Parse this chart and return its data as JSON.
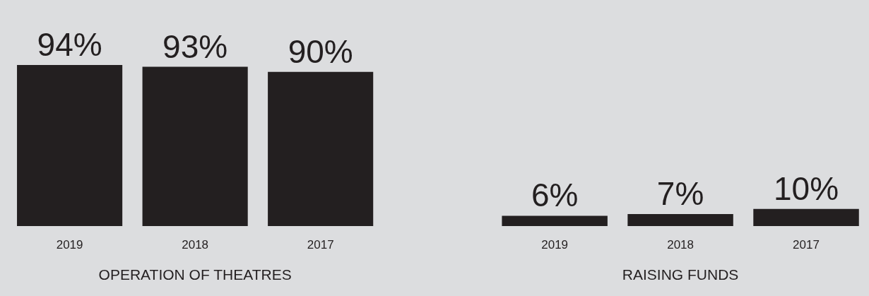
{
  "chart_data": [
    {
      "type": "bar",
      "xlabel": "OPERATION OF THEATRES",
      "categories": [
        "2019",
        "2018",
        "2017"
      ],
      "values": [
        94,
        93,
        90
      ],
      "value_labels": [
        "94%",
        "93%",
        "90%"
      ],
      "color": "#231f20",
      "ylim": [
        0,
        132
      ],
      "tick_labels": "x"
    },
    {
      "type": "bar",
      "xlabel": "RAISING FUNDS",
      "categories": [
        "2019",
        "2018",
        "2017"
      ],
      "values": [
        6,
        7,
        10
      ],
      "value_labels": [
        "6%",
        "7%",
        "10%"
      ],
      "color": "#231f20",
      "ylim": [
        0,
        132
      ],
      "tick_labels": "x"
    }
  ]
}
